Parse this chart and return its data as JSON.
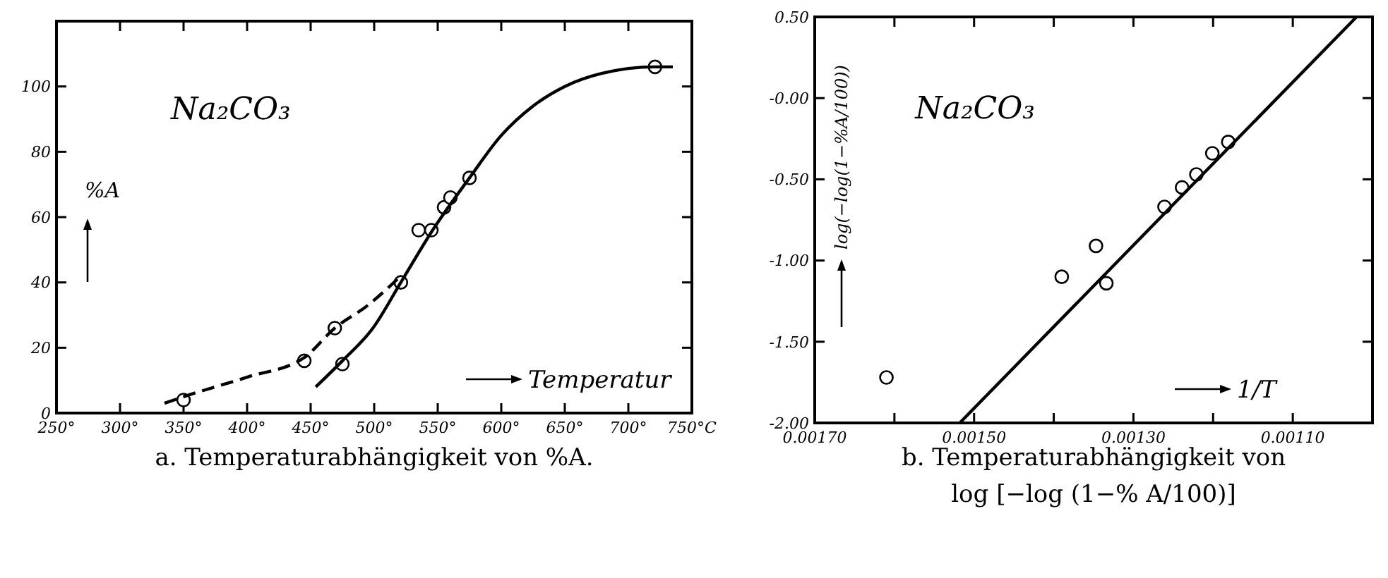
{
  "chart_data": [
    {
      "type": "scatter",
      "title": "a. Temperaturabhängigkeit von %A.",
      "xlabel": "Temperatur",
      "ylabel": "%A",
      "annotations": [
        "Na₂CO₃"
      ],
      "xlim": [
        250,
        750
      ],
      "ylim": [
        0,
        120
      ],
      "xticks": [
        {
          "value": 250,
          "label": "250°"
        },
        {
          "value": 300,
          "label": "300°"
        },
        {
          "value": 350,
          "label": "350°"
        },
        {
          "value": 400,
          "label": "400°"
        },
        {
          "value": 450,
          "label": "450°"
        },
        {
          "value": 500,
          "label": "500°"
        },
        {
          "value": 550,
          "label": "550°"
        },
        {
          "value": 600,
          "label": "600°"
        },
        {
          "value": 650,
          "label": "650°"
        },
        {
          "value": 700,
          "label": "700°"
        },
        {
          "value": 750,
          "label": "750°C"
        }
      ],
      "yticks": [
        0,
        20,
        40,
        60,
        80,
        100
      ],
      "grid": false,
      "series": [
        {
          "type": "scatter",
          "marker": "circle",
          "color": "#000000",
          "x": [
            350,
            445,
            469,
            475,
            521,
            535,
            545,
            555,
            560,
            575,
            721
          ],
          "values": [
            4,
            16,
            26,
            15,
            40,
            56,
            56,
            63,
            66,
            72,
            106
          ]
        },
        {
          "type": "line",
          "line_style": "dashed",
          "marker": "none",
          "color": "#000000",
          "x": [
            335,
            350,
            400,
            445,
            469,
            495,
            521
          ],
          "values": [
            3,
            5,
            11,
            17,
            26,
            33,
            42
          ]
        },
        {
          "type": "line",
          "line_style": "solid",
          "marker": "none",
          "color": "#000000",
          "x": [
            454,
            475,
            499,
            521,
            546,
            575,
            600,
            625,
            650,
            679,
            721,
            735
          ],
          "values": [
            8,
            16,
            26,
            40,
            56,
            72,
            85,
            94,
            100,
            104,
            106,
            106
          ]
        }
      ]
    },
    {
      "type": "scatter",
      "title": "b. Temperaturabhängigkeit von log [−log (1−% A/100)]",
      "xlabel": "1/T",
      "ylabel": "log(−log(1−%A/100))",
      "annotations": [
        "Na₂CO₃"
      ],
      "xlim": [
        0.0017,
        0.001
      ],
      "ylim": [
        -2,
        0.5
      ],
      "xticks": [
        {
          "value": 0.0017,
          "label": "0.00170"
        },
        {
          "value": 0.0016,
          "label": null
        },
        {
          "value": 0.0015,
          "label": "0.00150"
        },
        {
          "value": 0.0014,
          "label": null
        },
        {
          "value": 0.0013,
          "label": "0.00130"
        },
        {
          "value": 0.0012,
          "label": null
        },
        {
          "value": 0.0011,
          "label": "0.00110"
        }
      ],
      "yticks": [
        {
          "value": 0.5,
          "label": "0.50"
        },
        {
          "value": 0,
          "label": "-0.00"
        },
        {
          "value": -0.5,
          "label": "-0.50"
        },
        {
          "value": -1,
          "label": "-1.00"
        },
        {
          "value": -1.5,
          "label": "-1.50"
        },
        {
          "value": -2,
          "label": "-2.00"
        }
      ],
      "grid": false,
      "series": [
        {
          "type": "scatter",
          "marker": "circle",
          "color": "#000000",
          "x": [
            0.00161,
            0.00139,
            0.001347,
            0.001334,
            0.001261,
            0.001239,
            0.001221,
            0.001201,
            0.001181
          ],
          "values": [
            -1.72,
            -1.1,
            -0.91,
            -1.14,
            -0.67,
            -0.55,
            -0.47,
            -0.34,
            -0.27
          ]
        },
        {
          "type": "line",
          "line_style": "solid",
          "marker": "none",
          "color": "#000000",
          "x": [
            0.001518,
            0.00102
          ],
          "values": [
            -2,
            0.5
          ]
        }
      ]
    }
  ]
}
